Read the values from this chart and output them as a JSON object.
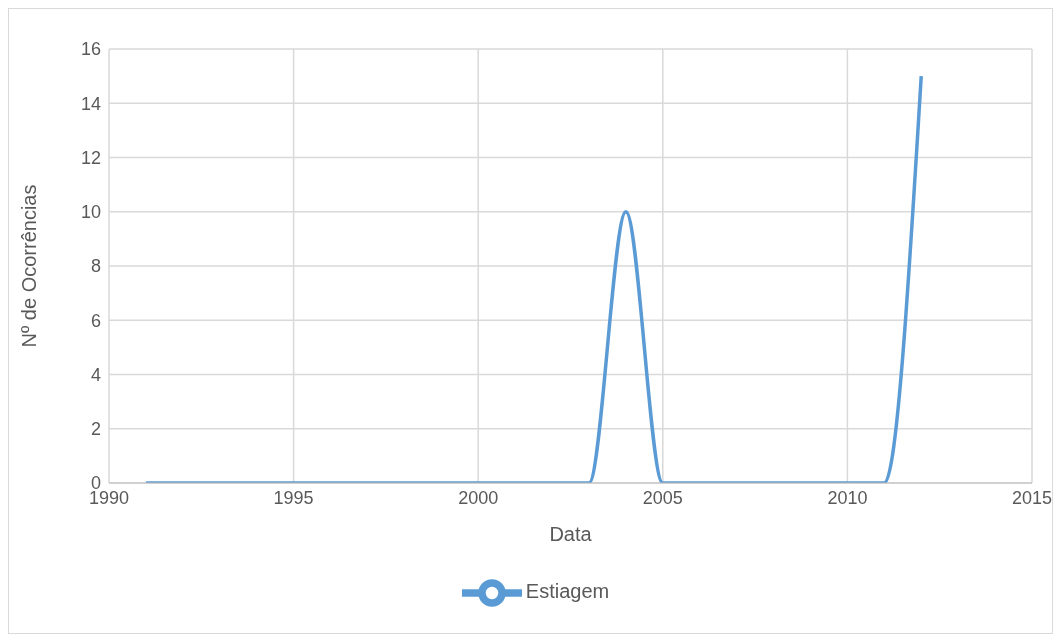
{
  "chart_data": {
    "type": "line",
    "xlabel": "Data",
    "ylabel": "Nº de Ocorrências",
    "x": [
      1991,
      1992,
      1993,
      1994,
      1995,
      1996,
      1997,
      1998,
      1999,
      2000,
      2001,
      2002,
      2003,
      2004,
      2005,
      2006,
      2007,
      2008,
      2009,
      2010,
      2011,
      2012
    ],
    "series": [
      {
        "name": "Estiagem",
        "color": "#5b9bd5",
        "values": [
          0,
          0,
          0,
          0,
          0,
          0,
          0,
          0,
          0,
          0,
          0,
          0,
          0,
          10,
          0,
          0,
          0,
          0,
          0,
          0,
          0,
          15
        ]
      }
    ],
    "xlim": [
      1990,
      2015
    ],
    "xticks": [
      1990,
      1995,
      2000,
      2005,
      2010,
      2015
    ],
    "ylim": [
      0,
      16
    ],
    "yticks": [
      0,
      2,
      4,
      6,
      8,
      10,
      12,
      14,
      16
    ],
    "grid": true,
    "legend": "bottom",
    "marker": "none",
    "line_style": "solid"
  }
}
